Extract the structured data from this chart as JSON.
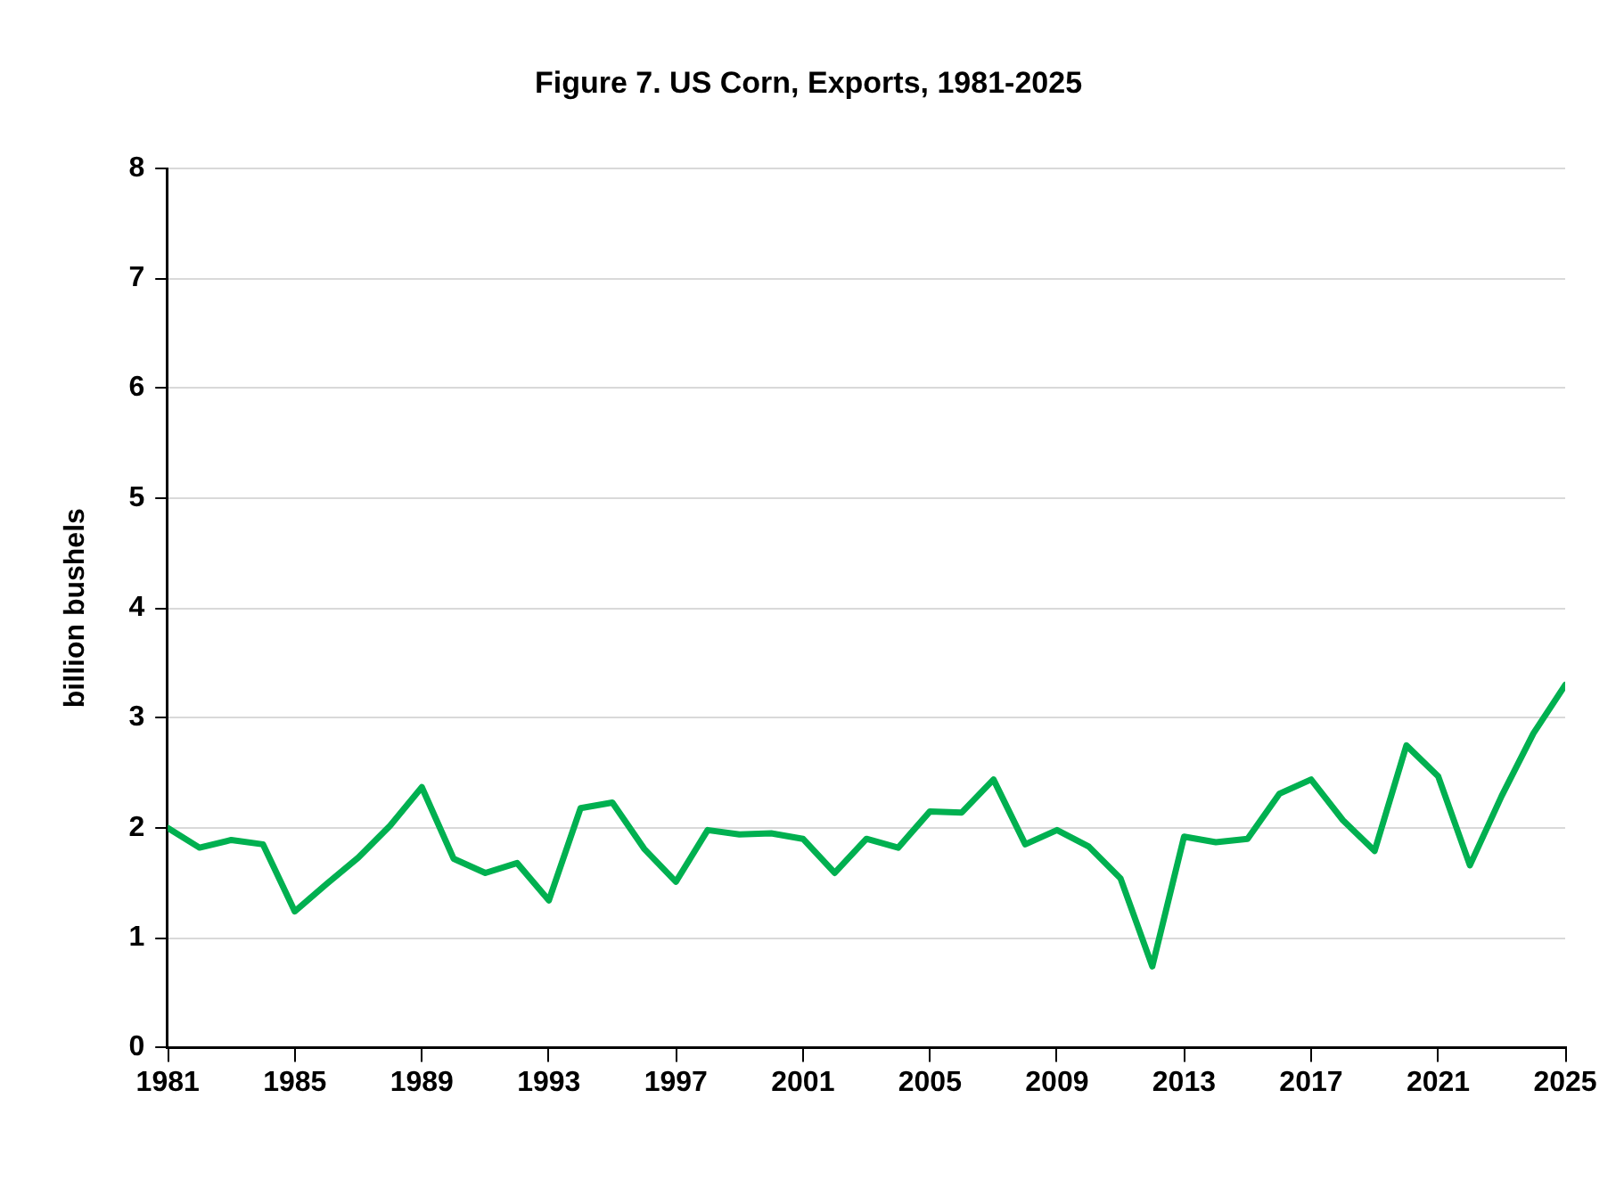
{
  "chart_data": {
    "type": "line",
    "title": "Figure 7. US Corn, Exports, 1981-2025",
    "ylabel": "billion bushels",
    "x": [
      1981,
      1982,
      1983,
      1984,
      1985,
      1986,
      1987,
      1988,
      1989,
      1990,
      1991,
      1992,
      1993,
      1994,
      1995,
      1996,
      1997,
      1998,
      1999,
      2000,
      2001,
      2002,
      2003,
      2004,
      2005,
      2006,
      2007,
      2008,
      2009,
      2010,
      2011,
      2012,
      2013,
      2014,
      2015,
      2016,
      2017,
      2018,
      2019,
      2020,
      2021,
      2022,
      2023,
      2024,
      2025
    ],
    "series": [
      {
        "color": "#00b050",
        "values": [
          2.0,
          1.82,
          1.89,
          1.85,
          1.24,
          1.49,
          1.73,
          2.02,
          2.37,
          1.72,
          1.59,
          1.68,
          1.34,
          2.18,
          2.23,
          1.81,
          1.51,
          1.98,
          1.94,
          1.95,
          1.9,
          1.59,
          1.9,
          1.82,
          2.15,
          2.14,
          2.44,
          1.85,
          1.98,
          1.83,
          1.54,
          0.74,
          1.92,
          1.87,
          1.9,
          2.31,
          2.44,
          2.07,
          1.79,
          2.75,
          2.47,
          1.66,
          2.29,
          2.86,
          3.3
        ]
      }
    ],
    "xlim": [
      1981,
      2025
    ],
    "xticks": [
      1981,
      1985,
      1989,
      1993,
      1997,
      2001,
      2005,
      2009,
      2013,
      2017,
      2021,
      2025
    ],
    "ylim": [
      0,
      8
    ],
    "yticks": [
      0,
      1,
      2,
      3,
      4,
      5,
      6,
      7,
      8
    ],
    "grid": "y",
    "legend": false,
    "marker": "none",
    "line_style": "solid"
  }
}
